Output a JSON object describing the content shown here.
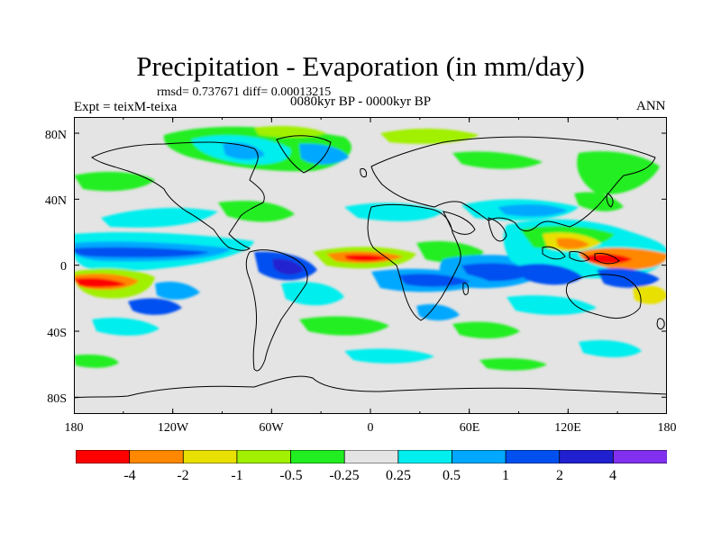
{
  "title": "Precipitation - Evaporation (in mm/day)",
  "stats_line": "rmsd= 0.737671 diff= 0.00013215",
  "experiment": "Expt = teixM-teixa",
  "period": "0080kyr BP - 0000kyr BP",
  "season": "ANN",
  "y_axis_labels": [
    "80N",
    "40N",
    "0",
    "40S",
    "80S"
  ],
  "x_axis_labels": [
    "180",
    "120W",
    "60W",
    "0",
    "60E",
    "120E",
    "180"
  ],
  "colorbar": {
    "labels": [
      "-4",
      "-2",
      "-1",
      "-0.5",
      "-0.25",
      "0.25",
      "0.5",
      "1",
      "2",
      "4"
    ],
    "colors": [
      "#ff0000",
      "#ff8800",
      "#e8e000",
      "#a0f000",
      "#20ee20",
      "#e4e4e4",
      "#00eeee",
      "#00a8ff",
      "#0050f0",
      "#2020d0",
      "#8030ee"
    ]
  },
  "colors": {
    "ocean_background": "#e4e4e4",
    "coastline": "#000000"
  }
}
